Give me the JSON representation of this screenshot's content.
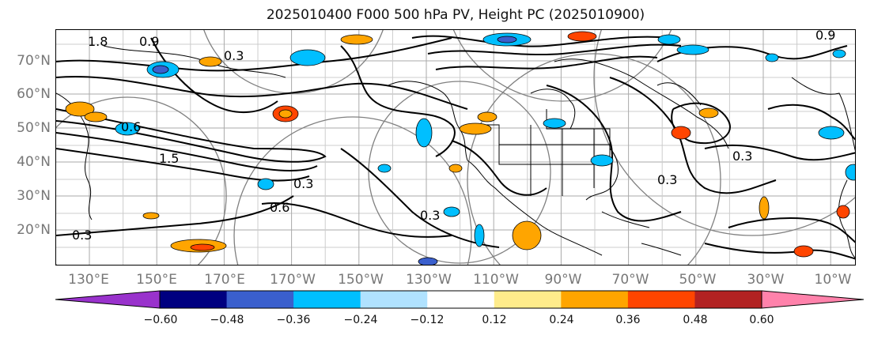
{
  "title": "2025010400 F000 500 hPa PV, Height PC (2025010900)",
  "lat_labels": [
    "70°N",
    "60°N",
    "50°N",
    "40°N",
    "30°N",
    "20°N"
  ],
  "lon_labels": [
    "130°E",
    "150°E",
    "170°E",
    "170°W",
    "150°W",
    "130°W",
    "110°W",
    "90°W",
    "70°W",
    "50°W",
    "30°W",
    "10°W"
  ],
  "colorbar": {
    "ticks": [
      "−0.60",
      "−0.48",
      "−0.36",
      "−0.24",
      "−0.12",
      "0.12",
      "0.24",
      "0.36",
      "0.48",
      "0.60"
    ],
    "colors": [
      "#9932cc",
      "#000080",
      "#3a5fcd",
      "#00bfff",
      "#b0e2ff",
      "#ffffff",
      "#ffec8b",
      "#ffa500",
      "#ff4500",
      "#b22222",
      "#ff82ab"
    ]
  },
  "contour_labels": [
    "1.8",
    "0.9",
    "0.3",
    "0.6",
    "1.5",
    "0.3",
    "0.3",
    "0.3",
    "0.6",
    "0.3",
    "0.3",
    "0.9"
  ]
}
